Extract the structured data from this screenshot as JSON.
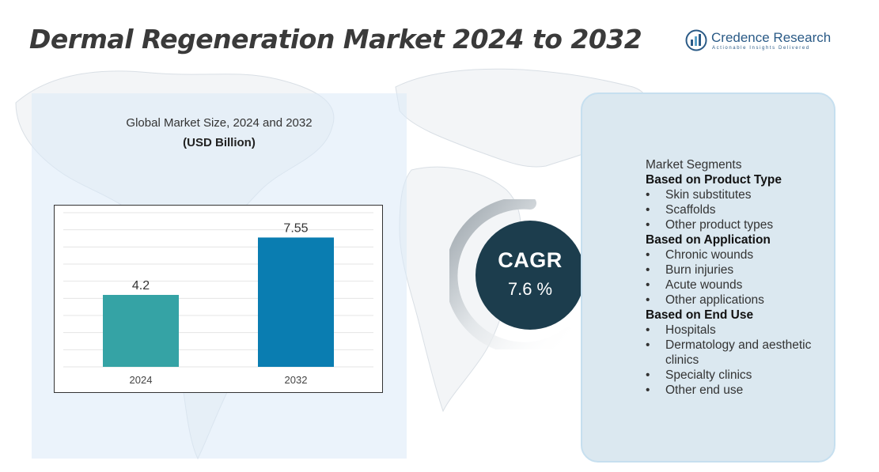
{
  "title": "Dermal Regeneration Market 2024 to 2032",
  "logo": {
    "name": "Credence Research",
    "tagline": "Actionable Insights Delivered"
  },
  "chart_data": {
    "type": "bar",
    "title": "Global Market Size, 2024 and 2032",
    "subtitle": "(USD Billion)",
    "categories": [
      "2024",
      "2032"
    ],
    "values": [
      4.2,
      7.55
    ],
    "value_labels": [
      "4.2",
      "7.55"
    ],
    "colors": [
      "#35a3a5",
      "#0a7db1"
    ],
    "ylim": [
      0,
      9
    ],
    "grid": true,
    "xlabel": "",
    "ylabel": ""
  },
  "cagr": {
    "label": "CAGR",
    "value": "7.6 %"
  },
  "segments": {
    "heading": "Market Segments",
    "groups": [
      {
        "title": "Based on Product Type",
        "items": [
          "Skin substitutes",
          "Scaffolds",
          "Other product types"
        ]
      },
      {
        "title": "Based on Application",
        "items": [
          "Chronic wounds",
          "Burn injuries",
          "Acute wounds",
          "Other applications"
        ]
      },
      {
        "title": "Based on End Use",
        "items": [
          "Hospitals",
          "Dermatology and aesthetic clinics",
          "Specialty clinics",
          "Other end use"
        ]
      }
    ]
  }
}
